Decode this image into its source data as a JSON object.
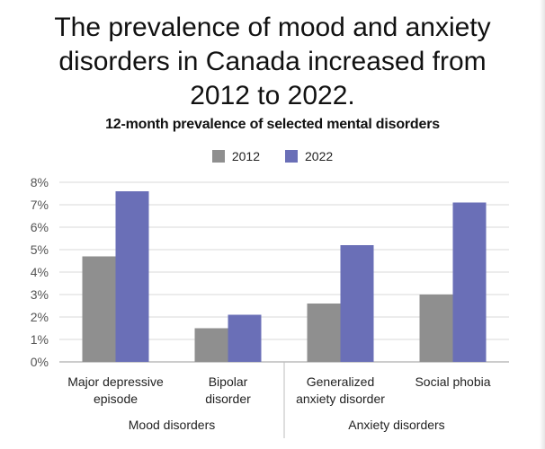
{
  "headline": {
    "lines": [
      "The prevalence of mood and anxiety",
      "disorders in Canada increased from",
      "2012 to 2022."
    ]
  },
  "colors": {
    "series_2012": "#8f8f8f",
    "series_2022": "#6a6fb7",
    "grid": "#d9d9d9",
    "axis": "#9a9a9a",
    "divider": "#bdbdbd"
  },
  "chart_data": {
    "type": "bar",
    "title": "12-month prevalence of selected mental disorders",
    "categories": [
      [
        "Major depressive",
        "episode"
      ],
      [
        "Bipolar",
        "disorder"
      ],
      [
        "Generalized",
        "anxiety disorder"
      ],
      [
        "Social phobia"
      ]
    ],
    "groups": [
      {
        "label": "Mood disorders",
        "categories": [
          0,
          1
        ]
      },
      {
        "label": "Anxiety disorders",
        "categories": [
          2,
          3
        ]
      }
    ],
    "series": [
      {
        "name": "2012",
        "values": [
          4.7,
          1.5,
          2.6,
          3.0
        ]
      },
      {
        "name": "2022",
        "values": [
          7.6,
          2.1,
          5.2,
          7.1
        ]
      }
    ],
    "ylim": [
      0,
      8
    ],
    "yticks": [
      0,
      1,
      2,
      3,
      4,
      5,
      6,
      7,
      8
    ],
    "ytick_labels": [
      "0%",
      "1%",
      "2%",
      "3%",
      "4%",
      "5%",
      "6%",
      "7%",
      "8%"
    ],
    "xlabel": "",
    "ylabel": "",
    "legend": "top-center",
    "grid": true
  }
}
